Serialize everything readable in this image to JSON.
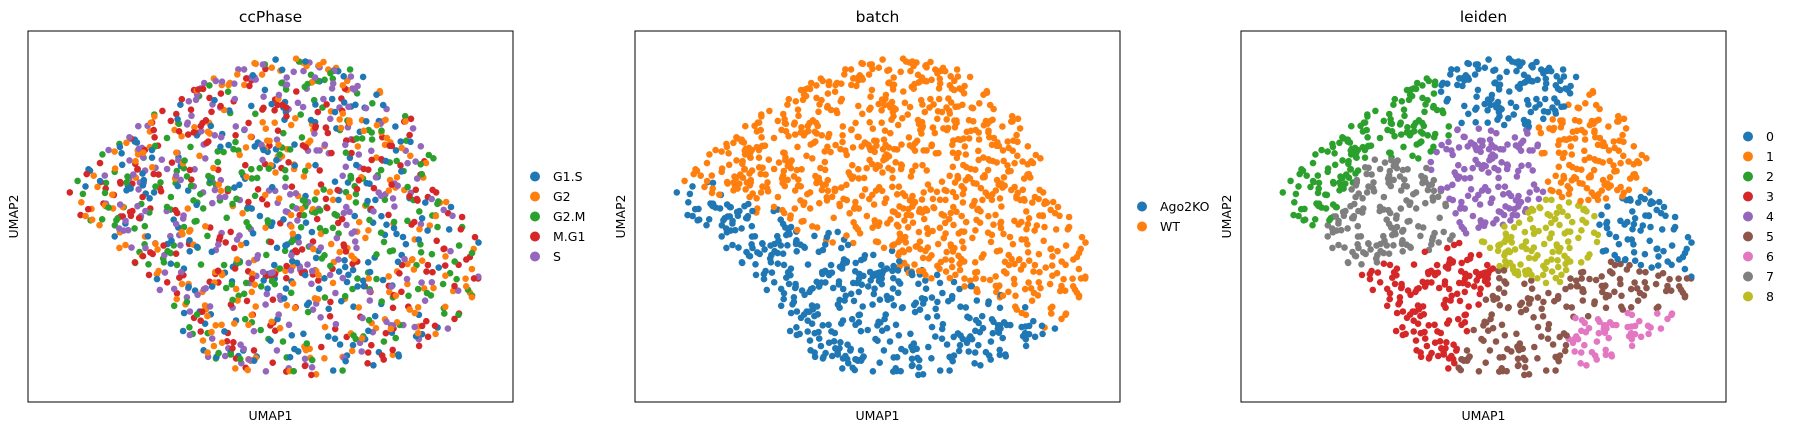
{
  "chart_data": [
    {
      "type": "scatter",
      "title": "ccPhase",
      "xlabel": "UMAP1",
      "ylabel": "UMAP2",
      "grid": false,
      "ticks": false,
      "legend_position": "right",
      "legend": [
        {
          "label": "G1.S",
          "color": "#1f77b4"
        },
        {
          "label": "G2",
          "color": "#ff7f0e"
        },
        {
          "label": "G2.M",
          "color": "#2ca02c"
        },
        {
          "label": "M.G1",
          "color": "#d62728"
        },
        {
          "label": "S",
          "color": "#9467bd"
        }
      ]
    },
    {
      "type": "scatter",
      "title": "batch",
      "xlabel": "UMAP1",
      "ylabel": "UMAP2",
      "grid": false,
      "ticks": false,
      "legend_position": "right",
      "legend": [
        {
          "label": "Ago2KO",
          "color": "#1f77b4"
        },
        {
          "label": "WT",
          "color": "#ff7f0e"
        }
      ]
    },
    {
      "type": "scatter",
      "title": "leiden",
      "xlabel": "UMAP1",
      "ylabel": "UMAP2",
      "grid": false,
      "ticks": false,
      "legend_position": "right",
      "legend": [
        {
          "label": "0",
          "color": "#1f77b4"
        },
        {
          "label": "1",
          "color": "#ff7f0e"
        },
        {
          "label": "2",
          "color": "#2ca02c"
        },
        {
          "label": "3",
          "color": "#d62728"
        },
        {
          "label": "4",
          "color": "#9467bd"
        },
        {
          "label": "5",
          "color": "#8c564b"
        },
        {
          "label": "6",
          "color": "#e377c2"
        },
        {
          "label": "7",
          "color": "#7f7f7f"
        },
        {
          "label": "8",
          "color": "#bcbd22"
        }
      ]
    }
  ]
}
